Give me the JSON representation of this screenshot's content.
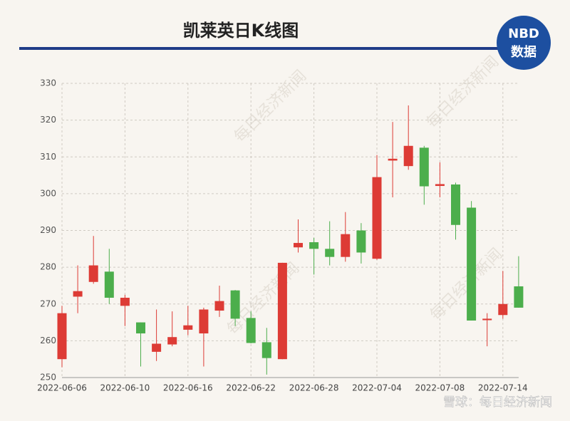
{
  "chart_data": {
    "type": "candlestick",
    "title": "凯莱英日K线图",
    "categories": [
      "2022-06-06",
      null,
      null,
      null,
      "2022-06-10",
      null,
      null,
      null,
      "2022-06-16",
      null,
      null,
      null,
      "2022-06-22",
      null,
      null,
      null,
      "2022-06-28",
      null,
      null,
      null,
      "2022-07-04",
      null,
      null,
      null,
      "2022-07-08",
      null,
      null,
      null,
      "2022-07-14",
      null
    ],
    "open": [
      255,
      272,
      276,
      278.8,
      269.5,
      265,
      257,
      259,
      263,
      262,
      268.2,
      273.7,
      266.2,
      259.6,
      255,
      285.4,
      286.8,
      285,
      282.8,
      290,
      282.3,
      309,
      307.5,
      312.5,
      302.1,
      302.5,
      296.2,
      265.6,
      267,
      274.8
    ],
    "high": [
      269.5,
      280.5,
      288.5,
      285,
      272.5,
      265,
      268.5,
      268,
      269.5,
      269,
      275,
      273.8,
      268,
      263.5,
      281.2,
      293,
      288,
      292.5,
      295,
      292,
      310.5,
      319.5,
      324,
      313,
      308.5,
      303,
      298,
      267.5,
      279,
      283
    ],
    "low": [
      252.8,
      267.5,
      275.5,
      270,
      264,
      253,
      254.5,
      258.5,
      261.5,
      253,
      266.5,
      264,
      259.3,
      250.8,
      255,
      284,
      278,
      280.5,
      281.5,
      281,
      282,
      299,
      306.5,
      297,
      299,
      287.5,
      265.5,
      258.5,
      266,
      269
    ],
    "close": [
      267.5,
      273.5,
      280.5,
      271.7,
      271.7,
      262,
      259.2,
      261,
      264.2,
      268.5,
      270.8,
      266,
      259.4,
      255.3,
      281.2,
      286.6,
      285,
      282.8,
      289,
      284,
      304.5,
      309.5,
      313,
      302,
      302.6,
      291.5,
      265.5,
      266,
      270,
      269
    ],
    "up_color": "#dd3b35",
    "down_color": "#4cae4c",
    "ylim": [
      250,
      330
    ],
    "yticks": [
      250,
      260,
      270,
      280,
      290,
      300,
      310,
      320,
      330
    ],
    "grid": true
  },
  "logo": {
    "top": "NBD",
    "bottom": "数据"
  },
  "watermark": "每日经济新闻",
  "footer": "雪球：每日经济新闻"
}
